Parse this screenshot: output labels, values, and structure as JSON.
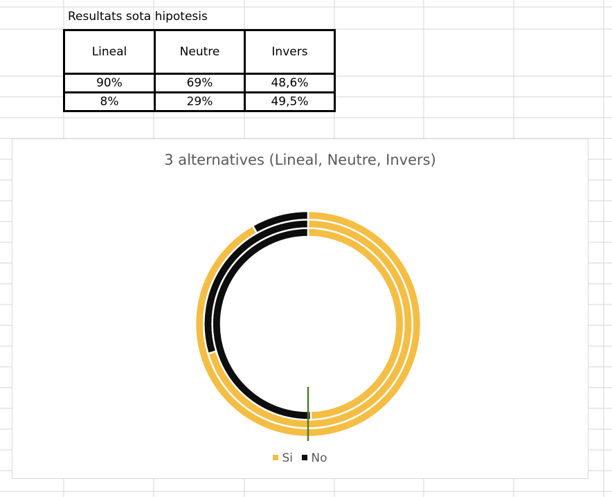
{
  "sheet": {
    "title": "Resultats sota hipotesis",
    "headers": [
      "Lineal",
      "Neutre",
      "Invers"
    ],
    "rows": [
      [
        "90%",
        "69%",
        "48,6%"
      ],
      [
        "8%",
        "29%",
        "49,5%"
      ]
    ]
  },
  "chart_data": {
    "type": "doughnut",
    "title": "3 alternatives (Lineal, Neutre, Invers)",
    "categories": [
      "Si",
      "No"
    ],
    "rings": [
      {
        "name": "Lineal",
        "values": [
          90,
          8
        ]
      },
      {
        "name": "Neutre",
        "values": [
          69,
          29
        ]
      },
      {
        "name": "Invers",
        "values": [
          48.6,
          49.5
        ]
      }
    ],
    "colors": {
      "Si": "#f4be45",
      "No": "#0d0d0d"
    },
    "legend_position": "bottom"
  }
}
